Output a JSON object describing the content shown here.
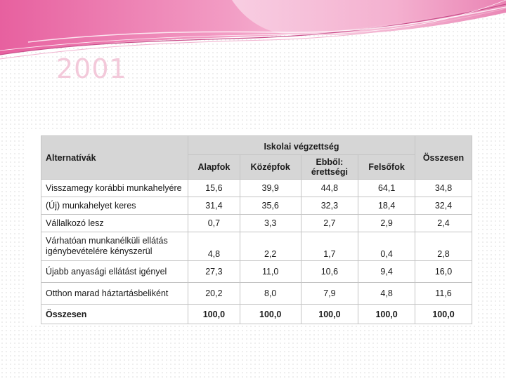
{
  "slide": {
    "title": "2001"
  },
  "table": {
    "headers": {
      "alternatives": "Alternatívák",
      "group": "Iskolai végzettség",
      "levels": [
        "Alapfok",
        "Középfok",
        "Ebből:\nérettségi",
        "Felsőfok"
      ],
      "total": "Összesen"
    },
    "rows": [
      {
        "label": "Visszamegy korábbi munkahelyére",
        "values": [
          "15,6",
          "39,9",
          "44,8",
          "64,1",
          "34,8"
        ]
      },
      {
        "label": "(Új) munkahelyet keres",
        "values": [
          "31,4",
          "35,6",
          "32,3",
          "18,4",
          "32,4"
        ]
      },
      {
        "label": "Vállalkozó lesz",
        "values": [
          "0,7",
          "3,3",
          "2,7",
          "2,9",
          "2,4"
        ]
      },
      {
        "label": "Várhatóan munkanélküli ellátás\nigénybevételére kényszerül",
        "values": [
          "4,8",
          "2,2",
          "1,7",
          "0,4",
          "2,8"
        ]
      },
      {
        "label": "Újabb anyasági ellátást igényel",
        "values": [
          "27,3",
          "11,0",
          "10,6",
          "9,4",
          "16,0"
        ]
      },
      {
        "label": "Otthon marad háztartásbeliként",
        "values": [
          "20,2",
          "8,0",
          "7,9",
          "4,8",
          "11,6"
        ]
      },
      {
        "label": "Összesen",
        "values": [
          "100,0",
          "100,0",
          "100,0",
          "100,0",
          "100,0"
        ]
      }
    ]
  },
  "colors": {
    "title": "#f3c9da",
    "banner_pink": "#ea6fa8",
    "banner_light": "#f7c8de",
    "header_fill": "#d6d6d6",
    "grid": "#c4c4c4"
  }
}
